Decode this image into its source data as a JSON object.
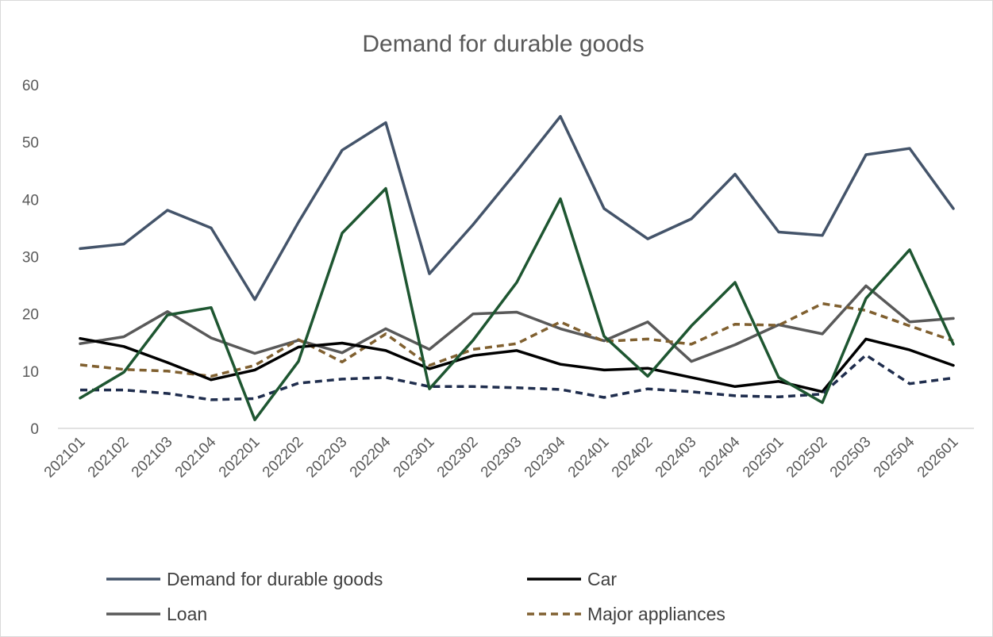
{
  "chart_data": {
    "type": "line",
    "title": "Demand for durable goods",
    "xlabel": "",
    "ylabel": "",
    "ylim": [
      0,
      60
    ],
    "yticks": [
      0,
      10,
      20,
      30,
      40,
      50,
      60
    ],
    "grid": false,
    "legend_position": "bottom",
    "categories": [
      "202101",
      "202102",
      "202103",
      "202104",
      "202201",
      "202202",
      "202203",
      "202204",
      "202301",
      "202302",
      "202303",
      "202304",
      "202401",
      "202402",
      "202403",
      "202404",
      "202501",
      "202502",
      "202503",
      "202504",
      "202601"
    ],
    "series": [
      {
        "name": "Demand for durable goods",
        "color": "#44546a",
        "dash": "solid",
        "in_legend": true,
        "values": [
          31.4,
          32.2,
          38.1,
          35.0,
          22.5,
          36.0,
          48.6,
          53.4,
          27.0,
          35.6,
          44.9,
          54.5,
          38.4,
          33.1,
          36.6,
          44.4,
          34.3,
          33.7,
          47.8,
          48.9,
          38.4
        ]
      },
      {
        "name": "Car",
        "color": "#000000",
        "dash": "solid",
        "in_legend": true,
        "values": [
          15.7,
          14.3,
          11.5,
          8.5,
          10.2,
          14.2,
          14.9,
          13.6,
          10.4,
          12.7,
          13.6,
          11.2,
          10.2,
          10.5,
          8.9,
          7.3,
          8.2,
          6.4,
          15.6,
          13.7,
          11.0
        ]
      },
      {
        "name": "Loan",
        "color": "#595959",
        "dash": "solid",
        "in_legend": true,
        "values": [
          14.8,
          16.0,
          20.4,
          15.8,
          13.1,
          15.4,
          13.2,
          17.4,
          13.8,
          20.0,
          20.3,
          17.4,
          15.3,
          18.6,
          11.7,
          14.6,
          18.1,
          16.5,
          24.9,
          18.6,
          19.2
        ]
      },
      {
        "name": "Major appliances",
        "color": "#806030",
        "dash": "dashed",
        "in_legend": true,
        "values": [
          11.1,
          10.3,
          10.0,
          9.1,
          11.0,
          15.5,
          11.6,
          16.5,
          11.0,
          13.8,
          14.8,
          18.6,
          15.2,
          15.6,
          14.7,
          18.2,
          18.0,
          21.8,
          20.6,
          17.9,
          15.3
        ]
      },
      {
        "name": "",
        "color": "#1e5631",
        "dash": "solid",
        "in_legend": false,
        "values": [
          5.3,
          9.8,
          19.8,
          21.1,
          1.5,
          11.7,
          34.1,
          41.9,
          6.9,
          15.4,
          25.5,
          40.1,
          16.1,
          9.1,
          17.9,
          25.5,
          8.9,
          4.5,
          22.7,
          31.2,
          14.7
        ]
      },
      {
        "name": "",
        "color": "#1f2d4d",
        "dash": "dashed",
        "in_legend": false,
        "values": [
          6.7,
          6.7,
          6.1,
          5.0,
          5.2,
          7.9,
          8.6,
          8.9,
          7.3,
          7.3,
          7.1,
          6.8,
          5.4,
          6.9,
          6.4,
          5.7,
          5.5,
          6.0,
          12.8,
          7.8,
          8.8
        ]
      }
    ]
  }
}
